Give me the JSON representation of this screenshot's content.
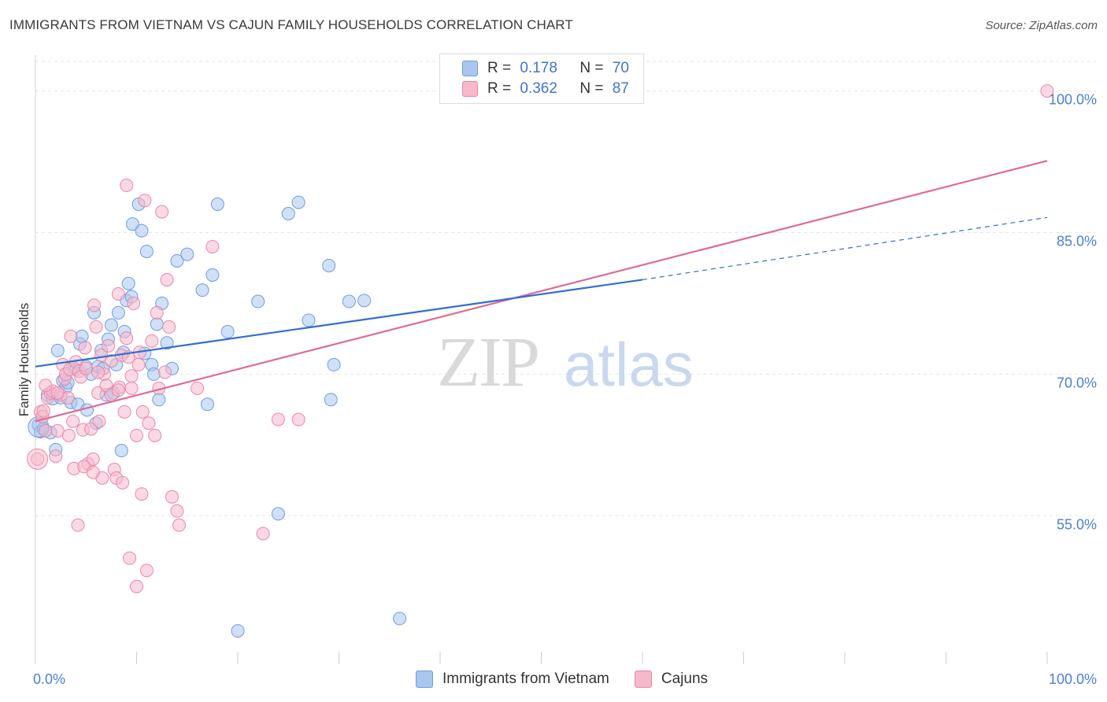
{
  "header": {
    "title": "IMMIGRANTS FROM VIETNAM VS CAJUN FAMILY HOUSEHOLDS CORRELATION CHART",
    "source": "Source: ZipAtlas.com"
  },
  "watermark": {
    "zip": "ZIP",
    "atlas": "atlas"
  },
  "legend": {
    "r_label": "R =",
    "n_label": "N =",
    "series": [
      {
        "name": "Immigrants from Vietnam",
        "r": "0.178",
        "n": "70",
        "fill": "#a9c6ef",
        "stroke": "#6d9de0"
      },
      {
        "name": "Cajuns",
        "r": "0.362",
        "n": "87",
        "fill": "#f6b9cc",
        "stroke": "#ea86a7"
      }
    ]
  },
  "colors": {
    "blue_line": "#2f6fd1",
    "pink_line": "#e06a95",
    "grid": "#e6e6e6",
    "axis_text": "#4a7fd4"
  },
  "chart_data": {
    "type": "scatter",
    "xlabel": "",
    "ylabel": "Family Households",
    "xlim": [
      0,
      100
    ],
    "ylim": [
      40.6,
      103.8
    ],
    "x_tick_labels": [
      {
        "value": 0,
        "label": "0.0%"
      },
      {
        "value": 100,
        "label": "100.0%"
      }
    ],
    "x_minor_ticks": [
      10,
      20,
      30,
      40,
      50,
      60,
      70,
      80,
      90,
      100
    ],
    "y_ticks": [
      {
        "value": 55,
        "label": "55.0%"
      },
      {
        "value": 70,
        "label": "70.0%"
      },
      {
        "value": 85,
        "label": "85.0%"
      },
      {
        "value": 100,
        "label": "100.0%"
      }
    ],
    "series": [
      {
        "name": "Immigrants from Vietnam",
        "trend": {
          "x0": 0,
          "y0": 70.8,
          "x1": 60,
          "y1": 80.0,
          "dash_x1": 100,
          "dash_y1": 86.6
        },
        "points": [
          [
            0.3,
            64.6
          ],
          [
            0.5,
            63.9
          ],
          [
            0.8,
            64.2
          ],
          [
            1.0,
            64.0
          ],
          [
            1.2,
            67.8
          ],
          [
            1.5,
            63.8
          ],
          [
            1.7,
            67.4
          ],
          [
            2.0,
            62.0
          ],
          [
            2.2,
            72.5
          ],
          [
            2.5,
            67.5
          ],
          [
            2.7,
            69.3
          ],
          [
            3.0,
            68.6
          ],
          [
            3.2,
            69.1
          ],
          [
            3.5,
            67.0
          ],
          [
            3.7,
            70.7
          ],
          [
            4.0,
            70.5
          ],
          [
            4.2,
            66.8
          ],
          [
            4.4,
            73.2
          ],
          [
            4.6,
            74.0
          ],
          [
            5.0,
            70.8
          ],
          [
            5.1,
            66.2
          ],
          [
            5.5,
            70.0
          ],
          [
            5.8,
            76.5
          ],
          [
            6.0,
            64.8
          ],
          [
            6.2,
            70.8
          ],
          [
            6.5,
            72.5
          ],
          [
            6.7,
            70.6
          ],
          [
            7.0,
            67.8
          ],
          [
            7.2,
            73.7
          ],
          [
            7.5,
            75.2
          ],
          [
            7.7,
            68.0
          ],
          [
            8.0,
            71.0
          ],
          [
            8.2,
            76.5
          ],
          [
            8.5,
            61.9
          ],
          [
            8.7,
            72.3
          ],
          [
            8.8,
            74.5
          ],
          [
            9.0,
            77.8
          ],
          [
            9.2,
            79.6
          ],
          [
            9.5,
            78.2
          ],
          [
            9.6,
            85.9
          ],
          [
            10.2,
            88.0
          ],
          [
            10.5,
            85.2
          ],
          [
            10.8,
            72.2
          ],
          [
            11.0,
            83.0
          ],
          [
            11.5,
            71.0
          ],
          [
            11.7,
            70.0
          ],
          [
            12.0,
            75.3
          ],
          [
            12.2,
            67.3
          ],
          [
            12.5,
            77.5
          ],
          [
            13.0,
            73.3
          ],
          [
            13.5,
            70.6
          ],
          [
            14.0,
            82.0
          ],
          [
            15.0,
            82.7
          ],
          [
            16.5,
            78.9
          ],
          [
            17.5,
            80.5
          ],
          [
            18.0,
            88.0
          ],
          [
            19.0,
            74.5
          ],
          [
            20.0,
            42.8
          ],
          [
            22.0,
            77.7
          ],
          [
            24.0,
            55.2
          ],
          [
            25.0,
            87.0
          ],
          [
            26.0,
            88.2
          ],
          [
            27.0,
            75.7
          ],
          [
            29.0,
            81.5
          ],
          [
            29.5,
            71.0
          ],
          [
            29.2,
            67.3
          ],
          [
            31.0,
            77.7
          ],
          [
            32.5,
            77.8
          ],
          [
            36.0,
            44.1
          ],
          [
            17.0,
            66.8
          ]
        ]
      },
      {
        "name": "Cajuns",
        "trend": {
          "x0": 0,
          "y0": 65.0,
          "x1": 100,
          "y1": 92.6
        },
        "points": [
          [
            0.2,
            61.0
          ],
          [
            0.5,
            66.0
          ],
          [
            0.7,
            65.5
          ],
          [
            1.0,
            64.0
          ],
          [
            1.2,
            67.5
          ],
          [
            1.5,
            68.0
          ],
          [
            1.7,
            68.2
          ],
          [
            2.0,
            61.3
          ],
          [
            2.2,
            64.0
          ],
          [
            2.5,
            67.8
          ],
          [
            2.7,
            71.0
          ],
          [
            2.9,
            69.5
          ],
          [
            3.0,
            70.0
          ],
          [
            3.2,
            67.5
          ],
          [
            3.4,
            70.5
          ],
          [
            3.5,
            74.0
          ],
          [
            3.7,
            65.0
          ],
          [
            3.8,
            60.0
          ],
          [
            4.0,
            71.3
          ],
          [
            4.2,
            54.0
          ],
          [
            4.3,
            70.3
          ],
          [
            4.5,
            69.7
          ],
          [
            4.7,
            64.1
          ],
          [
            4.9,
            72.8
          ],
          [
            5.0,
            70.6
          ],
          [
            5.2,
            60.5
          ],
          [
            5.5,
            64.2
          ],
          [
            5.7,
            61.0
          ],
          [
            5.8,
            77.3
          ],
          [
            6.0,
            75.0
          ],
          [
            6.2,
            68.0
          ],
          [
            6.3,
            65.0
          ],
          [
            6.5,
            72.0
          ],
          [
            6.6,
            59.0
          ],
          [
            6.8,
            70.0
          ],
          [
            7.0,
            68.8
          ],
          [
            7.2,
            73.0
          ],
          [
            7.5,
            71.4
          ],
          [
            7.8,
            59.9
          ],
          [
            8.0,
            59.0
          ],
          [
            8.2,
            78.5
          ],
          [
            8.3,
            68.6
          ],
          [
            8.5,
            72.0
          ],
          [
            8.6,
            58.5
          ],
          [
            8.8,
            66.0
          ],
          [
            9.0,
            90.0
          ],
          [
            9.2,
            71.8
          ],
          [
            9.5,
            68.5
          ],
          [
            9.7,
            77.5
          ],
          [
            10.0,
            63.5
          ],
          [
            10.2,
            71.0
          ],
          [
            10.5,
            57.3
          ],
          [
            10.6,
            66.0
          ],
          [
            10.8,
            88.4
          ],
          [
            11.0,
            49.2
          ],
          [
            11.5,
            73.5
          ],
          [
            11.8,
            63.5
          ],
          [
            12.0,
            76.5
          ],
          [
            12.2,
            68.5
          ],
          [
            12.5,
            87.2
          ],
          [
            13.0,
            80.0
          ],
          [
            13.2,
            75.0
          ],
          [
            13.5,
            57.0
          ],
          [
            14.0,
            55.5
          ],
          [
            14.2,
            54.0
          ],
          [
            16.0,
            68.5
          ],
          [
            17.5,
            83.5
          ],
          [
            22.5,
            53.1
          ],
          [
            24.0,
            65.2
          ],
          [
            26.0,
            65.2
          ],
          [
            100.0,
            100.0
          ],
          [
            9.3,
            50.5
          ],
          [
            10.0,
            47.5
          ],
          [
            2.2,
            68.0
          ],
          [
            1.0,
            68.8
          ],
          [
            0.8,
            66.1
          ],
          [
            3.3,
            63.5
          ],
          [
            4.8,
            60.2
          ],
          [
            5.7,
            59.6
          ],
          [
            6.2,
            70.2
          ],
          [
            7.5,
            67.8
          ],
          [
            8.2,
            68.3
          ],
          [
            9.0,
            73.8
          ],
          [
            9.5,
            69.8
          ],
          [
            10.3,
            72.3
          ],
          [
            11.2,
            64.8
          ],
          [
            12.8,
            70.2
          ]
        ]
      }
    ]
  }
}
